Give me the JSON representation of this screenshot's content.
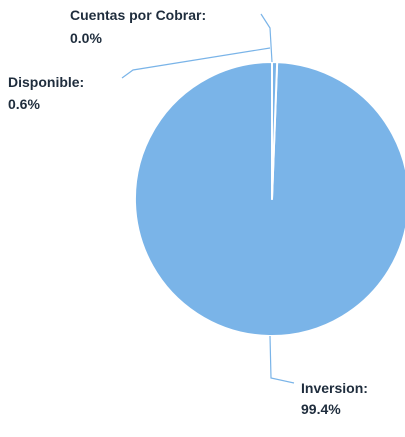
{
  "chart_data": {
    "type": "pie",
    "colors": {
      "slice": "#7ab4e8",
      "separator": "#ffffff",
      "leader": "#7ab4e8",
      "label": "#1f2d3d"
    },
    "slices": [
      {
        "name": "Inversion",
        "value": 99.4,
        "label_line1": "Inversion:",
        "label_line2": "99.4%"
      },
      {
        "name": "Disponible",
        "value": 0.6,
        "label_line1": "Disponible:",
        "label_line2": "0.6%"
      },
      {
        "name": "Cuentas por Cobrar",
        "value": 0.0,
        "label_line1": "Cuentas por Cobrar:",
        "label_line2": "0.0%"
      }
    ],
    "start_angle": "12 o'clock",
    "direction": "counterclockwise",
    "legend": "none"
  }
}
